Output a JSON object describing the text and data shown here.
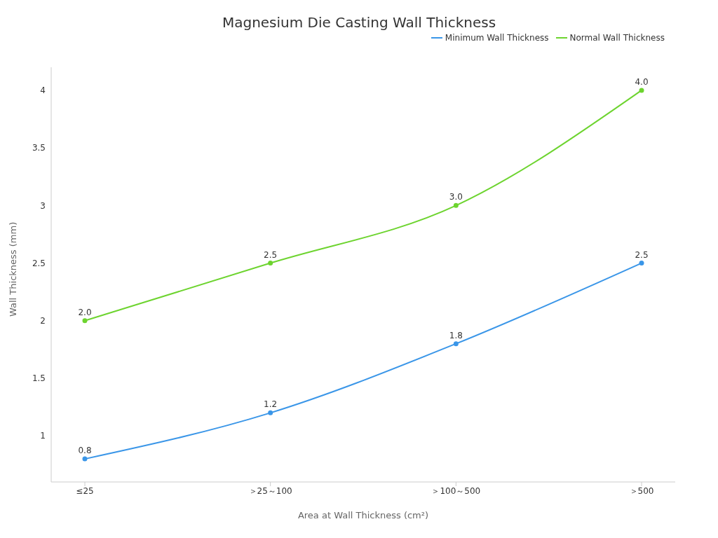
{
  "chart_data": {
    "type": "line",
    "title": "Magnesium Die Casting Wall Thickness",
    "xlabel": "Area at Wall Thickness (cm²)",
    "ylabel": "Wall Thickness (mm)",
    "categories": [
      "≤25",
      "＞25～100",
      "＞100～500",
      "＞500"
    ],
    "series": [
      {
        "name": "Minimum Wall Thickness",
        "color": "#3a96e8",
        "values": [
          0.8,
          1.2,
          1.8,
          2.5
        ],
        "value_labels": [
          "0.8",
          "1.2",
          "1.8",
          "2.5"
        ]
      },
      {
        "name": "Normal Wall Thickness",
        "color": "#6dd42f",
        "values": [
          2.0,
          2.5,
          3.0,
          4.0
        ],
        "value_labels": [
          "2.0",
          "2.5",
          "3.0",
          "4.0"
        ]
      }
    ],
    "ylim": [
      0.6,
      4.2
    ],
    "yticks": [
      1,
      1.5,
      2,
      2.5,
      3,
      3.5,
      4
    ],
    "legend": "top right",
    "marker": "circle",
    "line_style": "solid"
  }
}
